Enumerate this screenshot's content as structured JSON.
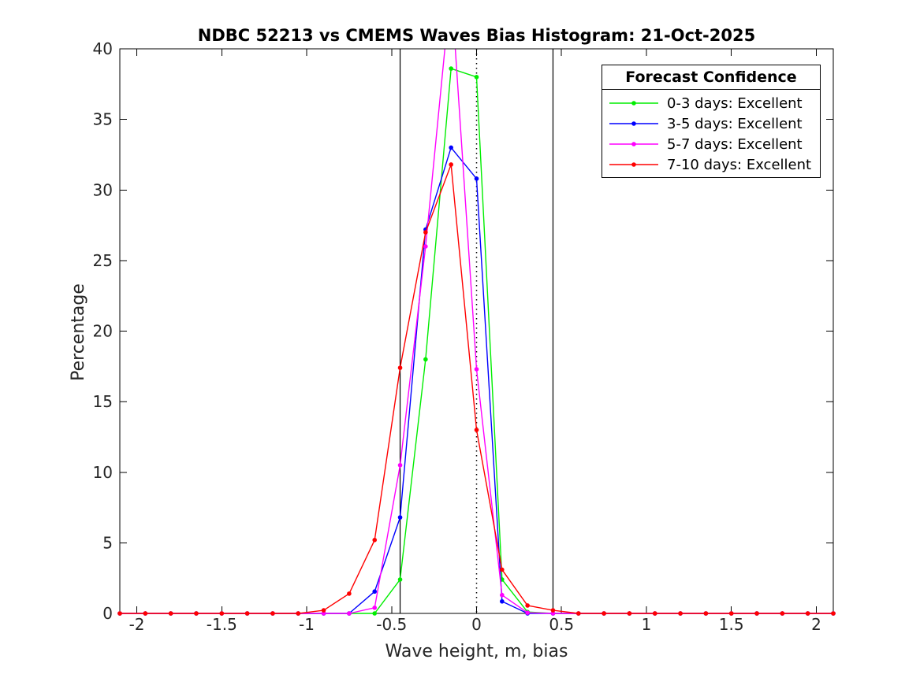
{
  "chart_data": {
    "type": "line",
    "title": "NDBC 52213 vs CMEMS Waves Bias Histogram: 21-Oct-2025",
    "xlabel": "Wave height, m, bias",
    "ylabel": "Percentage",
    "xlim": [
      -2.1,
      2.1
    ],
    "ylim": [
      0,
      40
    ],
    "grid": false,
    "xticks": [
      -2,
      -1.5,
      -1,
      -0.5,
      0,
      0.5,
      1,
      1.5,
      2
    ],
    "xtick_labels": [
      "-2",
      "-1.5",
      "-1",
      "-0.5",
      "0",
      "0.5",
      "1",
      "1.5",
      "2"
    ],
    "yticks": [
      0,
      5,
      10,
      15,
      20,
      25,
      30,
      35,
      40
    ],
    "ytick_labels": [
      "0",
      "5",
      "10",
      "15",
      "20",
      "25",
      "30",
      "35",
      "40"
    ],
    "x": [
      -2.1,
      -1.95,
      -1.8,
      -1.65,
      -1.5,
      -1.35,
      -1.2,
      -1.05,
      -0.9,
      -0.75,
      -0.6,
      -0.45,
      -0.3,
      -0.15,
      0,
      0.15,
      0.3,
      0.45,
      0.6,
      0.75,
      0.9,
      1.05,
      1.2,
      1.35,
      1.5,
      1.65,
      1.8,
      1.95,
      2.1
    ],
    "series": [
      {
        "name": "0-3 days: Excellent",
        "color": "#00ee00",
        "values": [
          0,
          0,
          0,
          0,
          0,
          0,
          0,
          0,
          0,
          0,
          0,
          2.4,
          18.0,
          38.6,
          38.0,
          2.4,
          0.1,
          0,
          0,
          0,
          0,
          0,
          0,
          0,
          0,
          0,
          0,
          0,
          0
        ]
      },
      {
        "name": "3-5 days: Excellent",
        "color": "#0000ff",
        "values": [
          0,
          0,
          0,
          0,
          0,
          0,
          0,
          0,
          0,
          0,
          1.55,
          6.8,
          27.2,
          33.0,
          30.8,
          0.85,
          0,
          0,
          0,
          0,
          0,
          0,
          0,
          0,
          0,
          0,
          0,
          0,
          0
        ]
      },
      {
        "name": "5-7 days: Excellent",
        "color": "#ff00ff",
        "values": [
          0,
          0,
          0,
          0,
          0,
          0,
          0,
          0,
          0,
          0,
          0.4,
          10.5,
          26.0,
          44.5,
          17.3,
          1.3,
          0.05,
          0,
          0,
          0,
          0,
          0,
          0,
          0,
          0,
          0,
          0,
          0,
          0
        ]
      },
      {
        "name": "7-10 days: Excellent",
        "color": "#ff0000",
        "values": [
          0,
          0,
          0,
          0,
          0,
          0,
          0,
          0,
          0.22,
          1.4,
          5.2,
          17.4,
          27.0,
          31.8,
          13.0,
          3.1,
          0.56,
          0.22,
          0,
          0,
          0,
          0,
          0,
          0,
          0,
          0,
          0,
          0,
          0
        ]
      }
    ],
    "annotations": {
      "solid_vlines": [
        -0.45,
        0.45
      ],
      "dotted_vline": 0
    },
    "legend_position": "top-right"
  },
  "legend": {
    "title": "Forecast Confidence",
    "entries": [
      {
        "label": "0-3 days: Excellent",
        "color": "#00ee00"
      },
      {
        "label": "3-5 days: Excellent",
        "color": "#0000ff"
      },
      {
        "label": "5-7 days: Excellent",
        "color": "#ff00ff"
      },
      {
        "label": "7-10 days: Excellent",
        "color": "#ff0000"
      }
    ]
  }
}
